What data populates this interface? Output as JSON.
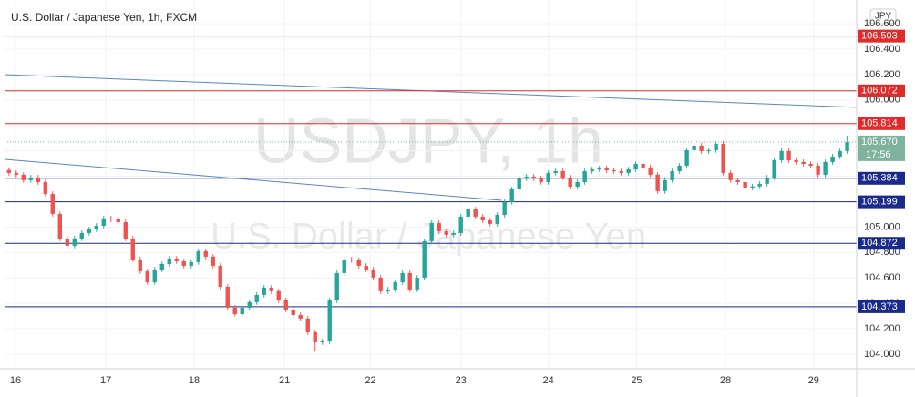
{
  "chart_data": {
    "type": "candlestick",
    "title": "U.S. Dollar / Japanese Yen, 1h, FXCM",
    "watermark": "USDJPY, 1h",
    "watermark_subtitle": "U.S. Dollar / Japanese Yen",
    "currency_button": "JPY",
    "countdown": "17:56",
    "up_color": "#26a69a",
    "down_color": "#ef5350",
    "xlim": [
      -0.6,
      116.3
    ],
    "xticks": [
      {
        "value": 0.9,
        "label": "16"
      },
      {
        "value": 13.3,
        "label": "17"
      },
      {
        "value": 25.4,
        "label": "18"
      },
      {
        "value": 37.8,
        "label": "21"
      },
      {
        "value": 49.6,
        "label": "22"
      },
      {
        "value": 62,
        "label": "23"
      },
      {
        "value": 74,
        "label": "24"
      },
      {
        "value": 86.1,
        "label": "25"
      },
      {
        "value": 98.3,
        "label": "28"
      },
      {
        "value": 110.4,
        "label": "29"
      }
    ],
    "ylim": [
      103.885,
      106.787
    ],
    "yticks": [
      {
        "value": 104,
        "label": "104.000"
      },
      {
        "value": 104.2,
        "label": "104.200"
      },
      {
        "value": 104.4,
        "label": "104.400"
      },
      {
        "value": 104.6,
        "label": "104.600"
      },
      {
        "value": 104.8,
        "label": "104.800"
      },
      {
        "value": 105,
        "label": "105.000"
      },
      {
        "value": 105.2,
        "label": "105.200"
      },
      {
        "value": 105.4,
        "label": "105.400"
      },
      {
        "value": 105.6,
        "label": "105.600"
      },
      {
        "value": 105.8,
        "label": "105.800"
      },
      {
        "value": 106,
        "label": "106.000"
      },
      {
        "value": 106.2,
        "label": "106.200"
      },
      {
        "value": 106.4,
        "label": "106.400"
      },
      {
        "value": 106.6,
        "label": "106.600"
      }
    ],
    "grid": true,
    "levels": [
      {
        "value": 106.503,
        "color": "#e02b2b"
      },
      {
        "value": 106.072,
        "color": "#e02b2b"
      },
      {
        "value": 105.814,
        "color": "#e02b2b"
      },
      {
        "value": 105.384,
        "color": "#1a2a8c"
      },
      {
        "value": 105.199,
        "color": "#1a2a8c"
      },
      {
        "value": 104.872,
        "color": "#1a2a8c"
      },
      {
        "value": 104.373,
        "color": "#1a2a8c"
      }
    ],
    "current_price": {
      "value": 105.67,
      "label": "105.670",
      "color": "#7fb39e"
    },
    "trendlines": [
      {
        "color": "#5b84c4",
        "x": [
          -0.6,
          116.3
        ],
        "y": [
          106.199,
          105.942
        ]
      },
      {
        "color": "#5b84c4",
        "x": [
          -0.6,
          67.6
        ],
        "y": [
          105.533,
          105.211
        ]
      }
    ],
    "open": [
      105.45,
      105.426,
      105.412,
      105.369,
      105.39,
      105.354,
      105.261,
      105.103,
      104.91,
      104.853,
      104.91,
      104.953,
      104.982,
      105.01,
      105.068,
      105.06,
      105.039,
      104.91,
      104.745,
      104.652,
      104.566,
      104.666,
      104.709,
      104.752,
      104.731,
      104.695,
      104.724,
      104.81,
      104.767,
      104.695,
      104.53,
      104.366,
      104.315,
      104.366,
      104.409,
      104.466,
      104.523,
      104.495,
      104.423,
      104.351,
      104.308,
      104.28,
      104.172,
      104.093,
      104.1,
      104.423,
      104.638,
      104.745,
      104.74,
      104.695,
      104.666,
      104.602,
      104.495,
      104.509,
      104.566,
      104.638,
      104.509,
      104.602,
      104.889,
      105.032,
      104.967,
      104.939,
      104.953,
      105.082,
      105.139,
      105.082,
      105.053,
      105.025,
      105.096,
      105.197,
      105.297,
      105.383,
      105.397,
      105.383,
      105.354,
      105.426,
      105.44,
      105.39,
      105.318,
      105.354,
      105.44,
      105.454,
      105.462,
      105.447,
      105.44,
      105.426,
      105.454,
      105.497,
      105.469,
      105.412,
      105.283,
      105.369,
      105.44,
      105.483,
      105.605,
      105.641,
      105.598,
      105.605,
      105.655,
      105.426,
      105.369,
      105.354,
      105.311,
      105.32,
      105.34,
      105.39,
      105.526,
      105.598,
      105.526,
      105.512,
      105.497,
      105.483,
      105.412,
      105.512,
      105.555,
      105.598
    ],
    "high": [
      105.47,
      105.446,
      105.432,
      105.41,
      105.41,
      105.374,
      105.281,
      105.123,
      104.93,
      104.93,
      104.973,
      105.002,
      105.03,
      105.088,
      105.088,
      105.08,
      105.059,
      104.93,
      104.765,
      104.672,
      104.686,
      104.729,
      104.772,
      104.772,
      104.751,
      104.744,
      104.83,
      104.83,
      104.787,
      104.715,
      104.55,
      104.386,
      104.386,
      104.429,
      104.486,
      104.543,
      104.543,
      104.515,
      104.443,
      104.371,
      104.328,
      104.3,
      104.192,
      104.12,
      104.443,
      104.658,
      104.765,
      104.765,
      104.76,
      104.715,
      104.686,
      104.622,
      104.529,
      104.586,
      104.658,
      104.658,
      104.622,
      104.909,
      105.052,
      105.052,
      104.987,
      104.973,
      105.102,
      105.159,
      105.159,
      105.102,
      105.073,
      105.116,
      105.217,
      105.317,
      105.403,
      105.417,
      105.417,
      105.403,
      105.446,
      105.46,
      105.46,
      105.41,
      105.374,
      105.46,
      105.474,
      105.482,
      105.482,
      105.467,
      105.46,
      105.474,
      105.517,
      105.517,
      105.489,
      105.432,
      105.389,
      105.46,
      105.503,
      105.625,
      105.661,
      105.661,
      105.625,
      105.675,
      105.675,
      105.446,
      105.389,
      105.374,
      105.34,
      105.36,
      105.41,
      105.546,
      105.618,
      105.618,
      105.546,
      105.532,
      105.517,
      105.503,
      105.532,
      105.575,
      105.618,
      105.72
    ],
    "low": [
      105.406,
      105.392,
      105.349,
      105.349,
      105.334,
      105.241,
      105.083,
      104.89,
      104.833,
      104.833,
      104.89,
      104.933,
      104.962,
      104.99,
      105.04,
      105.019,
      104.89,
      104.725,
      104.632,
      104.546,
      104.546,
      104.646,
      104.689,
      104.711,
      104.675,
      104.675,
      104.704,
      104.747,
      104.675,
      104.51,
      104.346,
      104.295,
      104.295,
      104.346,
      104.389,
      104.446,
      104.475,
      104.403,
      104.331,
      104.288,
      104.26,
      104.152,
      104.02,
      104.073,
      104.08,
      104.403,
      104.618,
      104.72,
      104.675,
      104.646,
      104.582,
      104.475,
      104.475,
      104.489,
      104.546,
      104.489,
      104.489,
      104.582,
      104.869,
      104.947,
      104.919,
      104.919,
      104.933,
      105.062,
      105.062,
      105.033,
      105.005,
      105.005,
      105.076,
      105.177,
      105.277,
      105.363,
      105.363,
      105.334,
      105.334,
      105.406,
      105.37,
      105.298,
      105.298,
      105.334,
      105.42,
      105.434,
      105.427,
      105.42,
      105.406,
      105.406,
      105.434,
      105.449,
      105.392,
      105.263,
      105.263,
      105.349,
      105.42,
      105.463,
      105.585,
      105.578,
      105.578,
      105.585,
      105.406,
      105.349,
      105.334,
      105.291,
      105.291,
      105.3,
      105.32,
      105.37,
      105.506,
      105.506,
      105.492,
      105.477,
      105.463,
      105.392,
      105.392,
      105.492,
      105.535,
      105.578
    ],
    "close": [
      105.426,
      105.412,
      105.369,
      105.39,
      105.354,
      105.261,
      105.103,
      104.91,
      104.853,
      104.91,
      104.953,
      104.982,
      105.01,
      105.068,
      105.06,
      105.039,
      104.91,
      104.745,
      104.652,
      104.566,
      104.666,
      104.709,
      104.752,
      104.731,
      104.695,
      104.724,
      104.81,
      104.767,
      104.695,
      104.53,
      104.366,
      104.315,
      104.366,
      104.409,
      104.466,
      104.523,
      104.495,
      104.423,
      104.351,
      104.308,
      104.28,
      104.172,
      104.093,
      104.1,
      104.423,
      104.638,
      104.745,
      104.74,
      104.695,
      104.666,
      104.602,
      104.495,
      104.509,
      104.566,
      104.638,
      104.509,
      104.602,
      104.889,
      105.032,
      104.967,
      104.939,
      104.953,
      105.082,
      105.139,
      105.082,
      105.053,
      105.025,
      105.096,
      105.197,
      105.297,
      105.383,
      105.397,
      105.383,
      105.354,
      105.426,
      105.44,
      105.39,
      105.318,
      105.354,
      105.44,
      105.454,
      105.462,
      105.447,
      105.44,
      105.426,
      105.454,
      105.497,
      105.469,
      105.412,
      105.283,
      105.369,
      105.44,
      105.483,
      105.605,
      105.641,
      105.598,
      105.605,
      105.655,
      105.426,
      105.369,
      105.354,
      105.311,
      105.32,
      105.34,
      105.39,
      105.526,
      105.598,
      105.526,
      105.512,
      105.497,
      105.483,
      105.412,
      105.512,
      105.555,
      105.598,
      105.67
    ]
  }
}
